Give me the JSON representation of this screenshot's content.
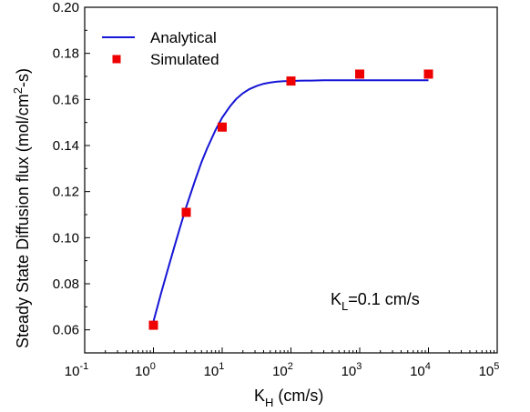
{
  "chart_data": {
    "type": "scatter",
    "xscale": "log",
    "xlim": [
      0.1,
      100000
    ],
    "ylim": [
      0.05,
      0.2
    ],
    "x_ticks": [
      {
        "value": 0.1,
        "base": "10",
        "exp": "-1"
      },
      {
        "value": 1,
        "base": "10",
        "exp": "0"
      },
      {
        "value": 10,
        "base": "10",
        "exp": "1"
      },
      {
        "value": 100,
        "base": "10",
        "exp": "2"
      },
      {
        "value": 1000,
        "base": "10",
        "exp": "3"
      },
      {
        "value": 10000,
        "base": "10",
        "exp": "4"
      },
      {
        "value": 100000,
        "base": "10",
        "exp": "5"
      }
    ],
    "y_ticks": [
      {
        "value": 0.06,
        "label": "0.06"
      },
      {
        "value": 0.08,
        "label": "0.08"
      },
      {
        "value": 0.1,
        "label": "0.10"
      },
      {
        "value": 0.12,
        "label": "0.12"
      },
      {
        "value": 0.14,
        "label": "0.14"
      },
      {
        "value": 0.16,
        "label": "0.16"
      },
      {
        "value": 0.18,
        "label": "0.18"
      },
      {
        "value": 0.2,
        "label": "0.20"
      }
    ],
    "xlabel": {
      "main": "K",
      "sub": "H",
      "rest": " (cm/s)"
    },
    "ylabel": {
      "main": "Steady State Diffusion flux (mol/cm",
      "sup": "2",
      "rest": "-s)"
    },
    "legend_position": "top-left",
    "annotation": {
      "main": "K",
      "sub": "L",
      "rest": "=0.1 cm/s"
    },
    "series": [
      {
        "name": "Analytical",
        "kind": "line",
        "color": "#1515d6",
        "x": [
          1,
          1.3,
          1.6,
          2,
          2.5,
          3,
          4,
          5,
          6,
          8,
          10,
          13,
          16,
          20,
          25,
          32,
          40,
          50,
          63,
          80,
          100,
          130,
          160,
          200,
          300,
          500,
          1000,
          2000,
          5000,
          10000
        ],
        "y": [
          0.0636,
          0.0762,
          0.0857,
          0.0957,
          0.1055,
          0.1133,
          0.1246,
          0.1328,
          0.1386,
          0.1467,
          0.1521,
          0.157,
          0.1602,
          0.1627,
          0.1645,
          0.1659,
          0.1668,
          0.1673,
          0.1677,
          0.1679,
          0.168,
          0.1681,
          0.1682,
          0.1682,
          0.1683,
          0.1683,
          0.1683,
          0.1683,
          0.1683,
          0.1683
        ]
      },
      {
        "name": "Simulated",
        "kind": "scatter",
        "color": "#ee0000",
        "x": [
          1,
          3,
          10,
          100,
          1000,
          10000
        ],
        "y": [
          0.062,
          0.111,
          0.148,
          0.168,
          0.171,
          0.171
        ]
      }
    ]
  }
}
